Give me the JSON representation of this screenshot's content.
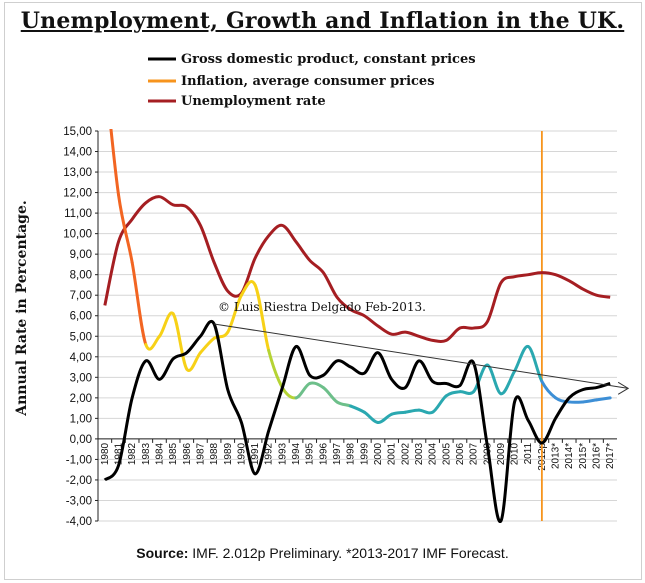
{
  "chart_data": {
    "type": "line",
    "title": "Unemployment, Growth and Inflation in the UK.",
    "ylabel": "Annual Rate in Percentage.",
    "source_label": "Source:",
    "source_rest": " IMF. 2.012p Preliminary. *2013-2017 IMF Forecast.",
    "annotation": "© Luis Riestra Delgado Feb-2013.",
    "ylim": [
      -4,
      15
    ],
    "ytick_step": 1,
    "ytick_labels": [
      "-4,00",
      "-3,00",
      "-2,00",
      "-1,00",
      "0,00",
      "1,00",
      "2,00",
      "3,00",
      "4,00",
      "5,00",
      "6,00",
      "7,00",
      "8,00",
      "9,00",
      "10,00",
      "11,00",
      "12,00",
      "13,00",
      "14,00",
      "15,00"
    ],
    "categories": [
      "1980",
      "1981",
      "1982",
      "1983",
      "1984",
      "1985",
      "1986",
      "1987",
      "1988",
      "1989",
      "1990",
      "1991",
      "1992",
      "1993",
      "1994",
      "1995",
      "1996",
      "1997",
      "1998",
      "1999",
      "2000",
      "2001",
      "2002",
      "2003",
      "2004",
      "2005",
      "2006",
      "2007",
      "2008",
      "2009",
      "2010",
      "2011",
      "2012p",
      "2013*",
      "2014*",
      "2015*",
      "2016*",
      "2017*"
    ],
    "x_tick_labels": [
      "1980",
      "1981",
      "1982",
      "1983",
      "1984",
      "1985",
      "1986",
      "1987",
      "1988",
      "1989",
      "1990",
      "1991",
      "1992",
      "1993",
      "1994",
      "1995",
      "1996",
      "1997",
      "1998",
      "1999",
      "2000",
      "2001",
      "2002",
      "2003",
      "2004",
      "2005",
      "2006",
      "2007",
      "2008",
      "2009",
      "2010",
      "2011",
      "2012p",
      "2013*",
      "2014*",
      "2015*",
      "2016*",
      "2017*"
    ],
    "forecast_marker_category": "2012p",
    "trend_line": {
      "from": [
        "1988",
        5.6
      ],
      "to": [
        "2017*",
        2.6
      ]
    },
    "series": [
      {
        "name": "Gross domestic product, constant prices",
        "color": "#000000",
        "values": [
          -2.0,
          -1.3,
          2.0,
          3.8,
          2.9,
          3.9,
          4.2,
          5.0,
          5.6,
          2.4,
          0.8,
          -1.7,
          0.4,
          2.5,
          4.5,
          3.1,
          3.1,
          3.8,
          3.5,
          3.2,
          4.2,
          2.9,
          2.5,
          3.8,
          2.8,
          2.7,
          2.6,
          3.7,
          -0.3,
          -4.0,
          1.8,
          0.9,
          -0.2,
          1.0,
          2.0,
          2.4,
          2.5,
          2.7
        ]
      },
      {
        "name": "Inflation, average consumer prices",
        "color": "#f7941d",
        "values": [
          18.0,
          11.9,
          8.6,
          4.6,
          5.0,
          6.1,
          3.4,
          4.2,
          4.9,
          5.2,
          7.0,
          7.5,
          4.3,
          2.5,
          2.0,
          2.7,
          2.5,
          1.8,
          1.6,
          1.3,
          0.8,
          1.2,
          1.3,
          1.4,
          1.3,
          2.1,
          2.3,
          2.3,
          3.6,
          2.2,
          3.3,
          4.5,
          2.8,
          2.0,
          1.8,
          1.8,
          1.9,
          2.0
        ]
      },
      {
        "name": "Unemployment rate",
        "color": "#a51e22",
        "values": [
          6.5,
          9.6,
          10.7,
          11.5,
          11.8,
          11.4,
          11.3,
          10.4,
          8.6,
          7.2,
          7.1,
          8.8,
          9.9,
          10.4,
          9.6,
          8.7,
          8.1,
          6.9,
          6.3,
          6.0,
          5.5,
          5.1,
          5.2,
          5.0,
          4.8,
          4.8,
          5.4,
          5.4,
          5.7,
          7.6,
          7.9,
          8.0,
          8.1,
          8.0,
          7.7,
          7.3,
          7.0,
          6.9
        ]
      }
    ]
  }
}
